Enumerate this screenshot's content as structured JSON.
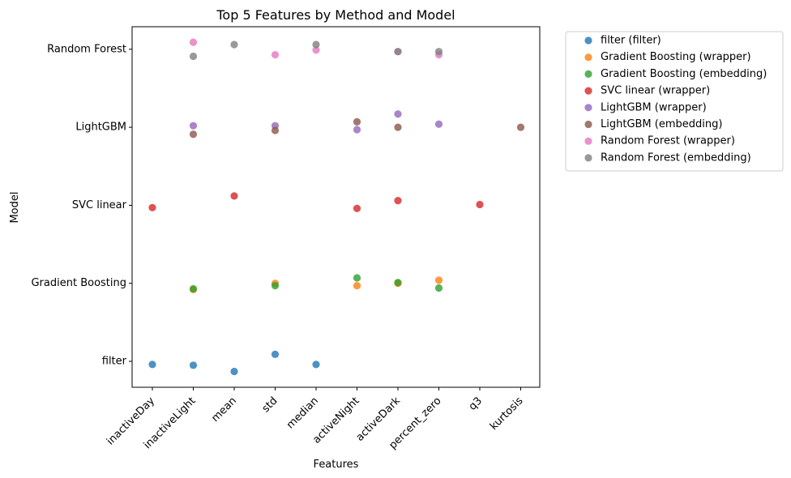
{
  "chart_data": {
    "type": "scatter",
    "title": "Top 5 Features by Method and Model",
    "xlabel": "Features",
    "ylabel": "Model",
    "categories": [
      "inactiveDay",
      "inactiveLight",
      "mean",
      "std",
      "median",
      "activeNight",
      "activeDark",
      "percent_zero",
      "q3",
      "kurtosis"
    ],
    "models": [
      "filter",
      "Gradient Boosting",
      "SVC linear",
      "LightGBM",
      "Random Forest"
    ],
    "grid": false,
    "legend_position": "outside-right",
    "series": [
      {
        "name": "filter (filter)",
        "color": "#1f77b4",
        "points": [
          {
            "x": "inactiveDay",
            "y": -0.04
          },
          {
            "x": "inactiveLight",
            "y": -0.05
          },
          {
            "x": "mean",
            "y": -0.13
          },
          {
            "x": "std",
            "y": 0.09
          },
          {
            "x": "median",
            "y": -0.04
          }
        ]
      },
      {
        "name": "Gradient Boosting (wrapper)",
        "color": "#ff7f0e",
        "points": [
          {
            "x": "inactiveLight",
            "y": 0.92
          },
          {
            "x": "std",
            "y": 1.0
          },
          {
            "x": "activeNight",
            "y": 0.97
          },
          {
            "x": "activeDark",
            "y": 1.0
          },
          {
            "x": "percent_zero",
            "y": 1.04
          }
        ]
      },
      {
        "name": "Gradient Boosting (embedding)",
        "color": "#2ca02c",
        "points": [
          {
            "x": "inactiveLight",
            "y": 0.93
          },
          {
            "x": "std",
            "y": 0.97
          },
          {
            "x": "activeNight",
            "y": 1.07
          },
          {
            "x": "activeDark",
            "y": 1.01
          },
          {
            "x": "percent_zero",
            "y": 0.94
          }
        ]
      },
      {
        "name": "SVC linear (wrapper)",
        "color": "#d62728",
        "points": [
          {
            "x": "inactiveDay",
            "y": 1.97
          },
          {
            "x": "mean",
            "y": 2.12
          },
          {
            "x": "activeNight",
            "y": 1.96
          },
          {
            "x": "activeDark",
            "y": 2.06
          },
          {
            "x": "q3",
            "y": 2.01
          }
        ]
      },
      {
        "name": "LightGBM (wrapper)",
        "color": "#9467bd",
        "points": [
          {
            "x": "inactiveLight",
            "y": 3.02
          },
          {
            "x": "std",
            "y": 3.02
          },
          {
            "x": "activeNight",
            "y": 2.97
          },
          {
            "x": "activeDark",
            "y": 3.17
          },
          {
            "x": "percent_zero",
            "y": 3.04
          }
        ]
      },
      {
        "name": "LightGBM (embedding)",
        "color": "#8c564b",
        "points": [
          {
            "x": "inactiveLight",
            "y": 2.91
          },
          {
            "x": "std",
            "y": 2.96
          },
          {
            "x": "activeNight",
            "y": 3.07
          },
          {
            "x": "activeDark",
            "y": 3.0
          },
          {
            "x": "kurtosis",
            "y": 3.0
          }
        ]
      },
      {
        "name": "Random Forest (wrapper)",
        "color": "#e377c2",
        "points": [
          {
            "x": "inactiveLight",
            "y": 4.09
          },
          {
            "x": "std",
            "y": 3.93
          },
          {
            "x": "median",
            "y": 3.99
          },
          {
            "x": "activeDark",
            "y": 3.97
          },
          {
            "x": "percent_zero",
            "y": 3.93
          }
        ]
      },
      {
        "name": "Random Forest (embedding)",
        "color": "#7f7f7f",
        "points": [
          {
            "x": "inactiveLight",
            "y": 3.91
          },
          {
            "x": "mean",
            "y": 4.06
          },
          {
            "x": "median",
            "y": 4.06
          },
          {
            "x": "activeDark",
            "y": 3.97
          },
          {
            "x": "percent_zero",
            "y": 3.97
          }
        ]
      }
    ]
  }
}
